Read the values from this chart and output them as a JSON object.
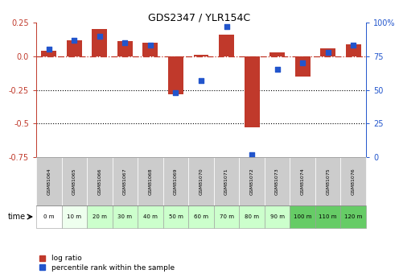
{
  "title": "GDS2347 / YLR154C",
  "samples": [
    "GSM81064",
    "GSM81065",
    "GSM81066",
    "GSM81067",
    "GSM81068",
    "GSM81069",
    "GSM81070",
    "GSM81071",
    "GSM81072",
    "GSM81073",
    "GSM81074",
    "GSM81075",
    "GSM81076"
  ],
  "times": [
    "0 m",
    "10 m",
    "20 m",
    "30 m",
    "40 m",
    "50 m",
    "60 m",
    "70 m",
    "80 m",
    "90 m",
    "100 m",
    "110 m",
    "120 m"
  ],
  "log_ratio": [
    0.04,
    0.12,
    0.2,
    0.11,
    0.1,
    -0.28,
    0.01,
    0.16,
    -0.53,
    0.03,
    -0.15,
    0.06,
    0.09
  ],
  "percentile": [
    80,
    87,
    90,
    85,
    83,
    48,
    57,
    97,
    2,
    65,
    70,
    78,
    83
  ],
  "ylim": [
    -0.75,
    0.25
  ],
  "yticks_left": [
    0.25,
    0.0,
    -0.25,
    -0.5,
    -0.75
  ],
  "yticks_right": [
    100,
    75,
    50,
    25,
    0
  ],
  "bar_color": "#C0392B",
  "dot_color": "#2255CC",
  "hline_color": "#C0392B",
  "legend_log": "log ratio",
  "legend_pct": "percentile rank within the sample",
  "time_label": "time",
  "bar_width": 0.6,
  "sample_row_color": "#CCCCCC",
  "time_colors": [
    "#FFFFFF",
    "#EEFFEE",
    "#CCFFCC",
    "#CCFFCC",
    "#CCFFCC",
    "#CCFFCC",
    "#CCFFCC",
    "#CCFFCC",
    "#CCFFCC",
    "#CCFFCC",
    "#66CC66",
    "#66CC66",
    "#66CC66"
  ]
}
